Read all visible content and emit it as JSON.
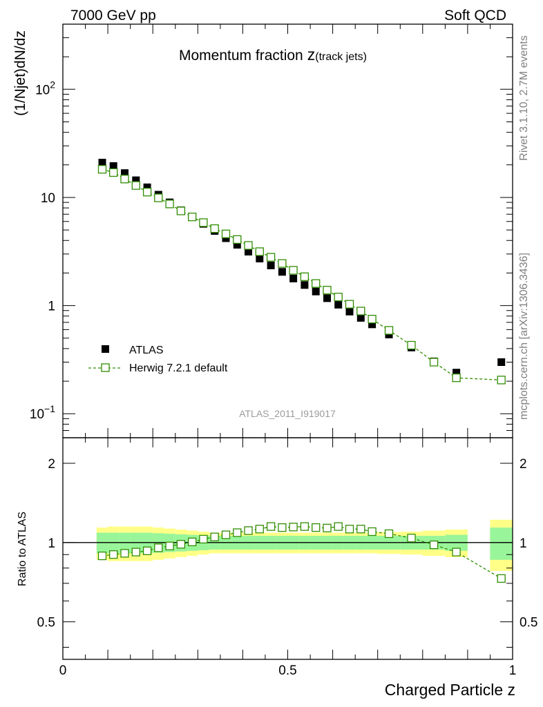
{
  "header": {
    "left": "7000 GeV pp",
    "right": "Soft QCD"
  },
  "side_labels": {
    "rivet": "Rivet 3.1.10,  2.7M events",
    "mcplots": "mcplots.cern.ch [arXiv:1306.3436]"
  },
  "analysis_id": "ATLAS_2011_I919017",
  "colors": {
    "data": "#000000",
    "mc": "#2f8c00",
    "band_inner": "#99f599",
    "band_outer": "#ffff88"
  },
  "chart_data": [
    {
      "type": "scatter",
      "title_main": "Momentum fraction",
      "title_var": "z",
      "title_sub": "(track jets)",
      "xlabel": "",
      "ylabel": "(1/Njet)dN/dz",
      "yscale": "log",
      "xlim": [
        0,
        1
      ],
      "ylim": [
        0.06,
        400
      ],
      "x_ticks": [
        0,
        0.5,
        1
      ],
      "y_ticks": [
        {
          "value": 0.1,
          "base": "10",
          "exp": "−1"
        },
        {
          "value": 1,
          "label": "1"
        },
        {
          "value": 10,
          "label": "10"
        },
        {
          "value": 100,
          "base": "10",
          "exp": "2"
        }
      ],
      "x": [
        0.0875,
        0.1125,
        0.1375,
        0.1625,
        0.1875,
        0.2125,
        0.2375,
        0.2625,
        0.2875,
        0.3125,
        0.3375,
        0.3625,
        0.3875,
        0.4125,
        0.4375,
        0.4625,
        0.4875,
        0.5125,
        0.5375,
        0.5625,
        0.5875,
        0.6125,
        0.6375,
        0.6625,
        0.6875,
        0.725,
        0.775,
        0.825,
        0.875,
        0.975
      ],
      "series": [
        {
          "name": "ATLAS",
          "marker": "filled-square",
          "values": [
            21.0,
            19.5,
            16.8,
            14.4,
            12.4,
            10.6,
            9.0,
            7.6,
            6.6,
            5.7,
            4.9,
            4.2,
            3.65,
            3.15,
            2.72,
            2.35,
            2.05,
            1.78,
            1.55,
            1.35,
            1.17,
            1.02,
            0.88,
            0.77,
            0.67,
            0.54,
            0.41,
            0.305,
            0.24,
            0.3
          ]
        },
        {
          "name": "Herwig 7.2.1 default",
          "marker": "open-square",
          "line": "dashed",
          "values": [
            18.2,
            17.0,
            14.8,
            12.9,
            11.2,
            9.9,
            8.7,
            7.5,
            6.6,
            5.85,
            5.15,
            4.6,
            4.08,
            3.6,
            3.15,
            2.8,
            2.45,
            2.12,
            1.85,
            1.6,
            1.39,
            1.2,
            1.03,
            0.89,
            0.75,
            0.59,
            0.43,
            0.3,
            0.215,
            0.205
          ]
        }
      ],
      "legend_position": "lower-left"
    },
    {
      "type": "scatter",
      "ylabel": "Ratio to ATLAS",
      "xlabel": "Charged Particle z",
      "yscale": "log",
      "xlim": [
        0,
        1
      ],
      "ylim": [
        0.36,
        2.5
      ],
      "x_ticks": [
        0,
        0.5,
        1
      ],
      "x_tick_labels": [
        "0",
        "0.5",
        "1"
      ],
      "y_ticks": [
        0.5,
        1,
        2
      ],
      "y_tick_labels": [
        "0.5",
        "1",
        "2"
      ],
      "reference_line": 1,
      "band_inner_half_width": [
        0.09,
        0.09,
        0.09,
        0.09,
        0.09,
        0.085,
        0.08,
        0.075,
        0.07,
        0.065,
        0.06,
        0.06,
        0.06,
        0.06,
        0.06,
        0.06,
        0.06,
        0.06,
        0.06,
        0.06,
        0.06,
        0.06,
        0.06,
        0.06,
        0.06,
        0.06,
        0.06,
        0.06,
        0.07,
        0.14
      ],
      "band_outer_half_width": [
        0.14,
        0.15,
        0.15,
        0.15,
        0.15,
        0.14,
        0.13,
        0.12,
        0.11,
        0.1,
        0.09,
        0.09,
        0.09,
        0.09,
        0.09,
        0.09,
        0.09,
        0.09,
        0.09,
        0.09,
        0.09,
        0.09,
        0.09,
        0.09,
        0.09,
        0.095,
        0.1,
        0.11,
        0.12,
        0.22
      ],
      "series": [
        {
          "name": "Herwig 7.2.1 default / ATLAS",
          "marker": "open-square",
          "line": "dashed",
          "values": [
            0.89,
            0.9,
            0.91,
            0.92,
            0.93,
            0.955,
            0.97,
            0.985,
            1.005,
            1.03,
            1.05,
            1.07,
            1.09,
            1.11,
            1.125,
            1.15,
            1.14,
            1.145,
            1.15,
            1.14,
            1.135,
            1.15,
            1.125,
            1.125,
            1.1,
            1.08,
            1.04,
            0.98,
            0.92,
            0.73
          ]
        }
      ]
    }
  ]
}
